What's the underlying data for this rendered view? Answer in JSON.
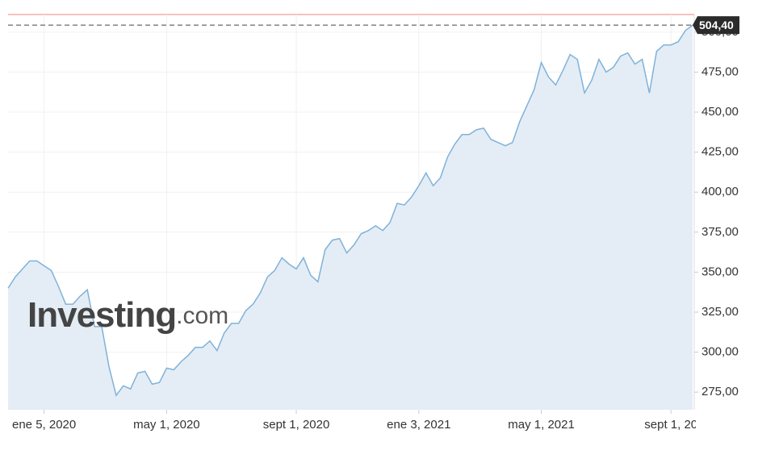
{
  "chart_data": {
    "type": "area",
    "categories": [
      null,
      null,
      null,
      null,
      null,
      "ene 5, 2020",
      null,
      null,
      null,
      null,
      null,
      null,
      null,
      null,
      null,
      null,
      null,
      null,
      null,
      null,
      null,
      null,
      "may 1, 2020",
      null,
      null,
      null,
      null,
      null,
      null,
      null,
      null,
      null,
      null,
      null,
      null,
      null,
      null,
      null,
      null,
      null,
      "sept 1, 2020",
      null,
      null,
      null,
      null,
      null,
      null,
      null,
      null,
      null,
      null,
      null,
      null,
      null,
      null,
      null,
      null,
      "ene 3, 2021",
      null,
      null,
      null,
      null,
      null,
      null,
      null,
      null,
      null,
      null,
      null,
      null,
      null,
      null,
      null,
      null,
      "may 1, 2021",
      null,
      null,
      null,
      null,
      null,
      null,
      null,
      null,
      null,
      null,
      null,
      null,
      null,
      null,
      null,
      null,
      null,
      "sept 1, 20",
      null,
      null,
      null
    ],
    "series": [
      {
        "color": "#7fb2d9",
        "values": [
          340,
          347,
          352,
          357,
          357,
          354,
          351,
          341,
          330,
          330,
          335,
          339,
          316,
          316,
          291,
          273,
          279,
          277,
          287,
          288,
          280,
          281,
          290,
          289,
          294,
          298,
          303,
          303,
          307,
          301,
          312,
          318,
          318,
          326,
          330,
          337,
          347,
          351,
          359,
          355,
          352,
          359,
          348,
          344,
          364,
          370,
          371,
          362,
          367,
          374,
          376,
          379,
          376,
          381,
          393,
          392,
          397,
          404,
          412,
          404,
          409,
          422,
          430,
          436,
          436,
          439,
          440,
          433,
          431,
          429,
          431,
          444,
          454,
          464,
          481,
          472,
          467,
          476,
          486,
          483,
          462,
          470,
          483,
          475,
          478,
          485,
          487,
          480,
          483,
          462,
          488,
          492,
          492,
          494,
          501,
          504.4
        ]
      }
    ],
    "ylim": [
      264,
      511
    ],
    "yticks": [
      {
        "value": 275,
        "label": "275,00"
      },
      {
        "value": 300,
        "label": "300,00"
      },
      {
        "value": 325,
        "label": "325,00"
      },
      {
        "value": 350,
        "label": "350,00"
      },
      {
        "value": 375,
        "label": "375,00"
      },
      {
        "value": 400,
        "label": "400,00"
      },
      {
        "value": 425,
        "label": "425,00"
      },
      {
        "value": 450,
        "label": "450,00"
      },
      {
        "value": 475,
        "label": "475,00"
      },
      {
        "value": 500,
        "label": "500,00"
      }
    ],
    "grid": true,
    "reference_line": {
      "value": 504.4,
      "label": "504,40"
    },
    "watermark": {
      "brand": "Investing",
      "suffix": ".com"
    }
  }
}
